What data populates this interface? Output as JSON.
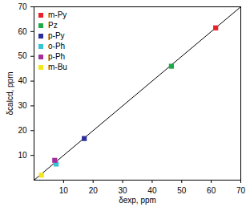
{
  "chart_data": {
    "type": "scatter",
    "x_label": "δexp, ppm",
    "y_label": "δcalcd, ppm",
    "xlim": [
      0,
      70
    ],
    "ylim": [
      0,
      70
    ],
    "xticks": [
      10,
      20,
      30,
      40,
      50,
      60,
      70
    ],
    "yticks": [
      10,
      20,
      30,
      40,
      50,
      60,
      70
    ],
    "grid": false,
    "legend": "top-left",
    "marker": "square",
    "line": {
      "x": [
        0,
        70
      ],
      "values": [
        0,
        70
      ]
    },
    "series": [
      {
        "name": "m-Py",
        "color": "#e8212b",
        "x": [
          61.5
        ],
        "values": [
          61.5
        ]
      },
      {
        "name": "Pz",
        "color": "#1faa4a",
        "x": [
          46.5
        ],
        "values": [
          46
        ]
      },
      {
        "name": "p-Py",
        "color": "#2b2f9c",
        "x": [
          17
        ],
        "values": [
          16.8
        ]
      },
      {
        "name": "o-Ph",
        "color": "#35c3d8",
        "x": [
          7.5
        ],
        "values": [
          6.5
        ]
      },
      {
        "name": "p-Ph",
        "color": "#a1309c",
        "x": [
          7
        ],
        "values": [
          8
        ]
      },
      {
        "name": "m-Bu",
        "color": "#f5e61c",
        "x": [
          2.5
        ],
        "values": [
          2
        ]
      }
    ]
  }
}
